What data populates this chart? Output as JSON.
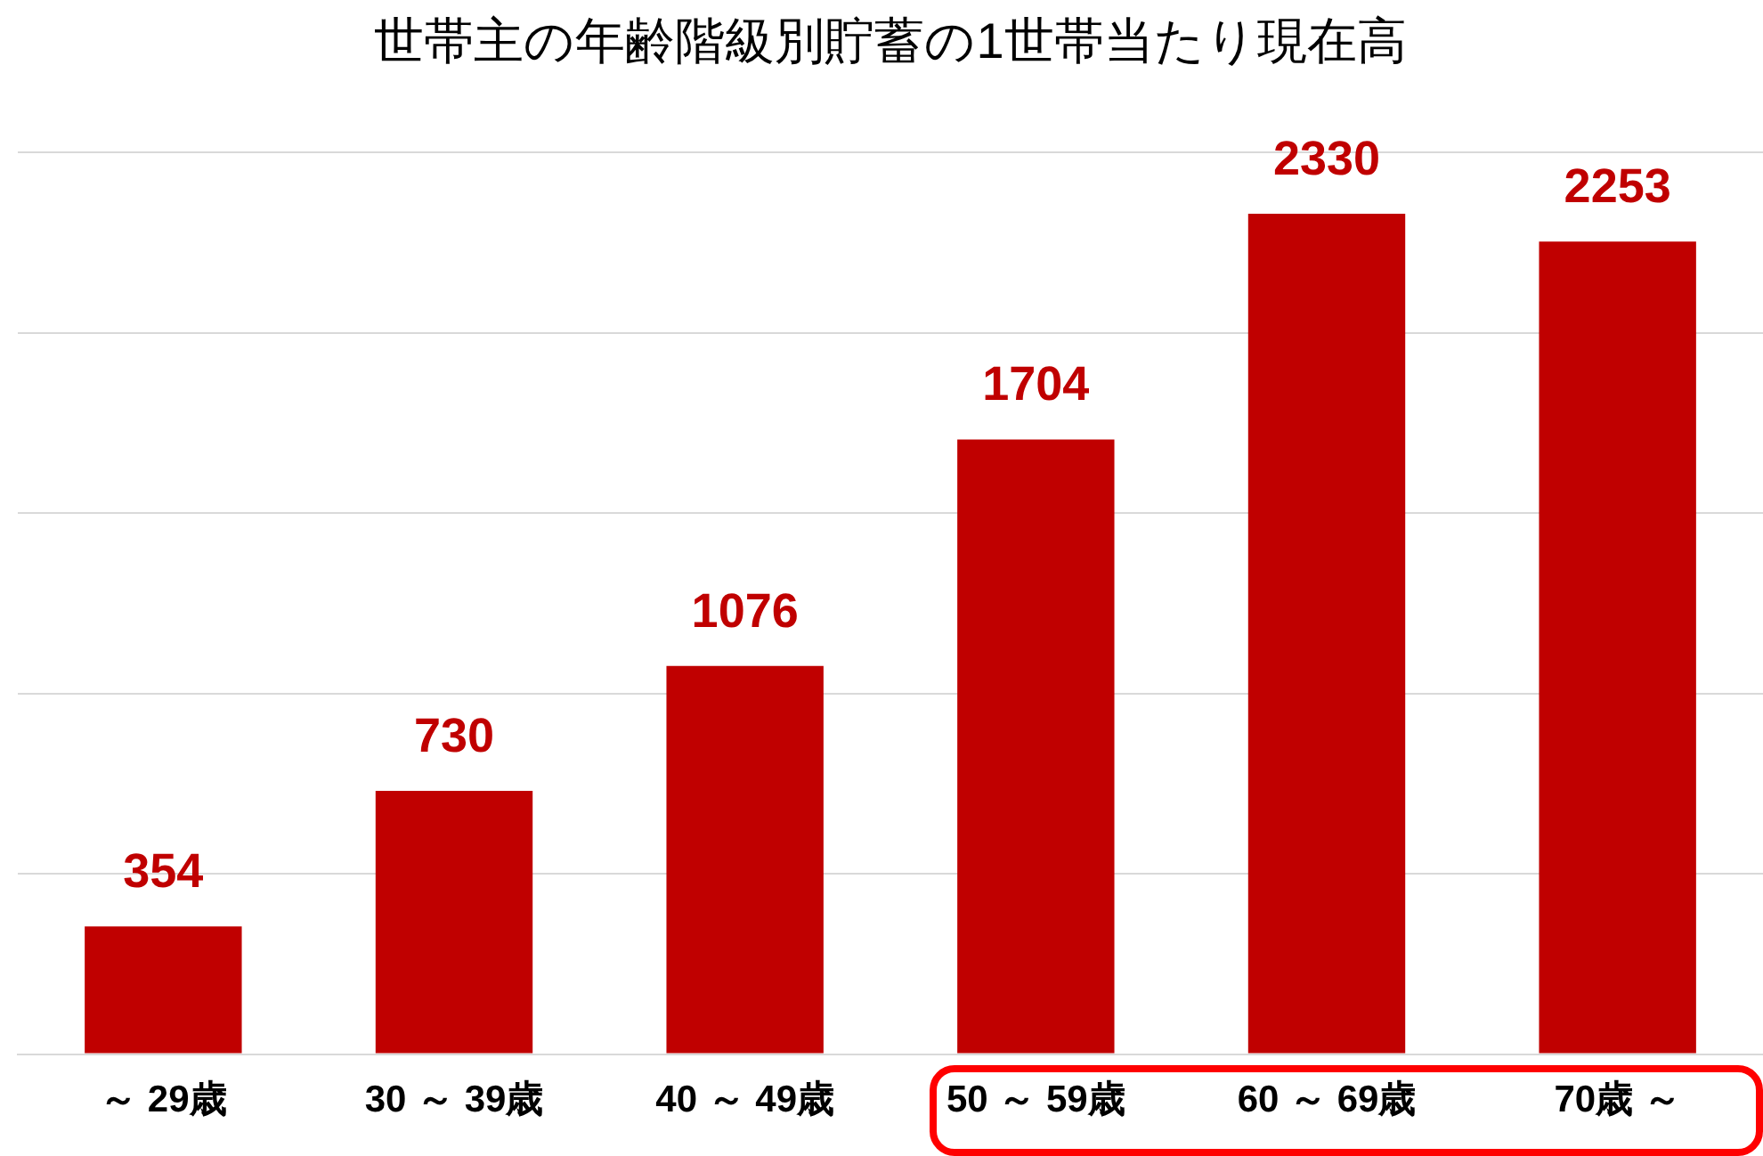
{
  "chart_data": {
    "type": "bar",
    "title": "世帯主の年齢階級別貯蓄の1世帯当たり現在高",
    "categories": [
      "～ 29歳",
      "30 ～ 39歳",
      "40 ～ 49歳",
      "50 ～ 59歳",
      "60 ～ 69歳",
      "70歳 ～"
    ],
    "values": [
      354,
      730,
      1076,
      1704,
      2330,
      2253
    ],
    "color": "#c00000",
    "ylim": [
      0,
      2500
    ],
    "yticks": [
      {
        "value": 0,
        "label": null
      },
      {
        "value": 500,
        "label": null
      },
      {
        "value": 1000,
        "label": null
      },
      {
        "value": 1500,
        "label": null
      },
      {
        "value": 2000,
        "label": null
      },
      {
        "value": 2500,
        "label": null
      }
    ],
    "grid": "y",
    "tick_labels": "x",
    "data_labels": true,
    "legend": false
  }
}
